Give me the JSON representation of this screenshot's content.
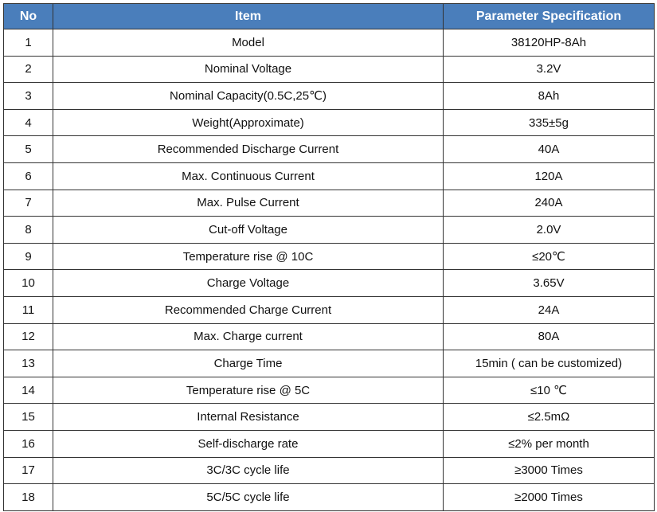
{
  "table": {
    "header": [
      "No",
      "Item",
      "Parameter Specification"
    ],
    "rows": [
      [
        "1",
        "Model",
        "38120HP-8Ah"
      ],
      [
        "2",
        "Nominal Voltage",
        "3.2V"
      ],
      [
        "3",
        "Nominal Capacity(0.5C,25℃)",
        "8Ah"
      ],
      [
        "4",
        "Weight(Approximate)",
        "335±5g"
      ],
      [
        "5",
        "Recommended Discharge Current",
        "40A"
      ],
      [
        "6",
        "Max. Continuous Current",
        "120A"
      ],
      [
        "7",
        "Max. Pulse Current",
        "240A"
      ],
      [
        "8",
        "Cut-off Voltage",
        "2.0V"
      ],
      [
        "9",
        "Temperature rise @ 10C",
        "≤20℃"
      ],
      [
        "10",
        "Charge Voltage",
        "3.65V"
      ],
      [
        "11",
        "Recommended Charge Current",
        "24A"
      ],
      [
        "12",
        "Max. Charge current",
        "80A"
      ],
      [
        "13",
        "Charge Time",
        "15min ( can be customized)"
      ],
      [
        "14",
        "Temperature rise @ 5C",
        "≤10 ℃"
      ],
      [
        "15",
        "Internal Resistance",
        "≤2.5mΩ"
      ],
      [
        "16",
        "Self-discharge rate",
        "≤2% per month"
      ],
      [
        "17",
        "3C/3C cycle life",
        "≥3000 Times"
      ],
      [
        "18",
        "5C/5C cycle life",
        "≥2000 Times"
      ]
    ]
  }
}
